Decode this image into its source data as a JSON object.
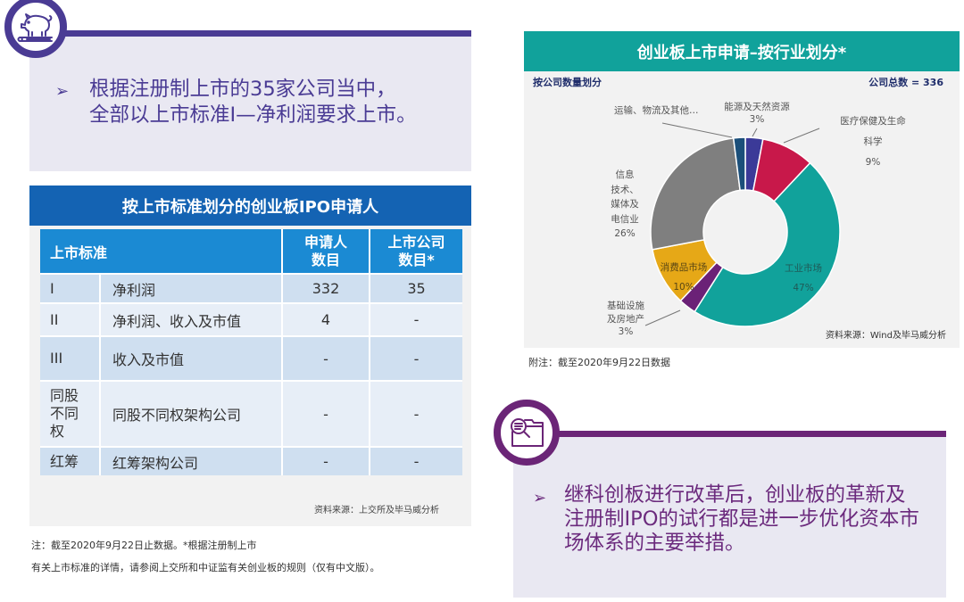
{
  "colors": {
    "top_card_accent": "#4a3b94",
    "bottom_card_accent": "#6b2577",
    "card_bg": "#e9e8f2",
    "table_title_bg": "#1463b3",
    "table_header_bg": "#1b8ad3",
    "table_row_dark": "#cfdff0",
    "table_row_light": "#e7eef7",
    "chart_header_bg": "#11a29b",
    "panel_bg": "#f2f2f2"
  },
  "top_card": {
    "icon": "piggy-bank-on-books-icon",
    "bullet": "➢",
    "lines": [
      "根据注册制上市的35家公司当中，",
      "全部以上市标准I—净利润要求上市。"
    ]
  },
  "ipo_table": {
    "title": "按上市标准划分的创业板IPO申请人",
    "header": {
      "criteria": "上市标准",
      "applicants": [
        "申请人",
        "数目"
      ],
      "listed": [
        "上市公司",
        "数目*"
      ]
    },
    "rows": [
      {
        "code": "I",
        "criterion": "净利润",
        "applicants": "332",
        "listed": "35"
      },
      {
        "code": "II",
        "criterion": "净利润、收入及市值",
        "applicants": "4",
        "listed": "-"
      },
      {
        "code": "III",
        "criterion": "收入及市值",
        "applicants": "-",
        "listed": "-"
      },
      {
        "code": "同股不同权",
        "criterion": "同股不同权架构公司",
        "applicants": "-",
        "listed": "-"
      },
      {
        "code": "红筹",
        "criterion": "红筹架构公司",
        "applicants": "-",
        "listed": "-"
      }
    ],
    "source": "资料来源：上交所及毕马威分析"
  },
  "table_notes": [
    "注：截至2020年9月22日止数据。*根据注册制上市",
    "有关上市标准的详情，请参阅上交所和中证监有关创业板的规则（仅有中文版）。"
  ],
  "industry_chart": {
    "title": "创业板上市申请–按行业划分*",
    "subtitle": "按公司数量划分",
    "total": "公司总数 = 336",
    "labels": {
      "transport": [
        "运输、物流及其他…"
      ],
      "energy": [
        "能源及天然资源",
        "3%"
      ],
      "healthcare": [
        "医疗保健及生命",
        "科学",
        "9%"
      ],
      "tmt": [
        "信息",
        "技术、",
        "媒体及",
        "电信业",
        "26%"
      ],
      "consumer": [
        "消费品市场",
        "10%"
      ],
      "infrastructure": [
        "基础设施",
        "及房地产",
        "3%"
      ],
      "industrial": [
        "工业市场",
        "47%"
      ]
    },
    "source": "资料来源：Wind及毕马威分析",
    "note": "附注：截至2020年9月22日数据"
  },
  "bottom_card": {
    "icon": "folder-search-icon",
    "bullet": "➢",
    "lines": [
      "继科创板进行改革后，创业板的革新及",
      "注册制IPO的试行都是进一步优化资本市",
      "场体系的主要举措。"
    ]
  },
  "chart_data": {
    "type": "pie",
    "variant": "donut",
    "title": "创业板上市申请–按行业划分*",
    "subtitle": "按公司数量划分",
    "total_label": "公司总数 = 336",
    "total": 336,
    "unit": "%",
    "start_angle": "12 o'clock, clockwise",
    "categories": [
      "能源及天然资源",
      "医疗保健及生命科学",
      "工业市场",
      "基础设施及房地产",
      "消费品市场",
      "信息技术、媒体及电信业",
      "运输、物流及其他…"
    ],
    "keys": [
      "energy",
      "healthcare",
      "industrial",
      "infrastructure",
      "consumer",
      "tmt",
      "transport"
    ],
    "values": [
      3,
      9,
      47,
      3,
      10,
      26,
      2
    ],
    "colors": [
      "#3b3a98",
      "#c8184a",
      "#11a29b",
      "#6b2177",
      "#e6a817",
      "#7f7f7f",
      "#1b4f7a"
    ],
    "legend": "none (direct labels)",
    "source": "资料来源：Wind及毕马威分析"
  }
}
